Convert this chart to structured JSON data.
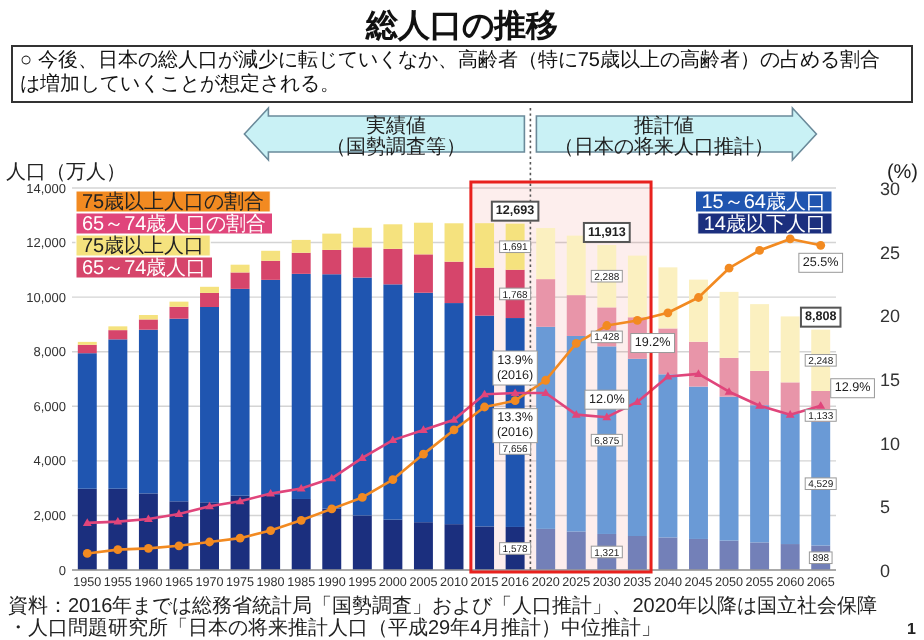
{
  "chart_data": {
    "type": "bar",
    "stacked": true,
    "title": "総人口の推移",
    "subtitle": "○ 今後、日本の総人口が減少に転じていくなか、高齢者（特に75歳以上の高齢者）の占める割合は増加していくことが想定される。",
    "ylabel": "人口（万人）",
    "y2label": "(%)",
    "annotations": [
      "実績値（国勢調査等）",
      "推計値（日本の将来人口推計）",
      "資料：2016年までは総務省統計局「国勢調査」および「人口推計」、2020年以降は国立社会保障・人口問題研究所「日本の将来推計人口（平成29年4月推計）中位推計」",
      "1"
    ],
    "categories": [
      "1950",
      "1955",
      "1960",
      "1965",
      "1970",
      "1975",
      "1980",
      "1985",
      "1990",
      "1995",
      "2000",
      "2005",
      "2010",
      "2015",
      "2016",
      "2020",
      "2025",
      "2030",
      "2035",
      "2040",
      "2045",
      "2050",
      "2055",
      "2060",
      "2065"
    ],
    "ylim": [
      0,
      14000
    ],
    "yticks": [
      0,
      {
        "value": 2000,
        "label": "2,000"
      },
      {
        "value": 4000,
        "label": "4,000"
      },
      {
        "value": 6000,
        "label": "6,000"
      },
      {
        "value": 8000,
        "label": "8,000"
      },
      {
        "value": 10000,
        "label": "10,000"
      },
      {
        "value": 12000,
        "label": "12,000"
      },
      {
        "value": 14000,
        "label": "14,000"
      }
    ],
    "y2lim": [
      0,
      30
    ],
    "y2ticks": [
      0,
      5,
      10,
      15,
      20,
      25,
      30
    ],
    "grid": "y",
    "series": [
      {
        "name": "14歳以下人口",
        "color": "#1b2f7e",
        "colors": [
          "#1b2f7e",
          "#1b2f7e",
          "#1b2f7e",
          "#1b2f7e",
          "#1b2f7e",
          "#1b2f7e",
          "#1b2f7e",
          "#1b2f7e",
          "#1b2f7e",
          "#1b2f7e",
          "#1b2f7e",
          "#1b2f7e",
          "#1b2f7e",
          "#1b2f7e",
          "#1b2f7e",
          "#7380b8",
          "#7380b8",
          "#7380b8",
          "#7380b8",
          "#7380b8",
          "#7380b8",
          "#7380b8",
          "#7380b8",
          "#7380b8",
          "#7380b8"
        ],
        "values": [
          2979,
          2980,
          2807,
          2517,
          2482,
          2722,
          2751,
          2603,
          2249,
          2001,
          1847,
          1752,
          1680,
          1595,
          1578,
          1507,
          1407,
          1321,
          1246,
          1194,
          1138,
          1077,
          1012,
          951,
          898
        ],
        "value_labels": [
          null,
          null,
          null,
          null,
          null,
          null,
          null,
          null,
          null,
          null,
          null,
          null,
          null,
          null,
          "1,578",
          null,
          null,
          "1,321",
          null,
          null,
          null,
          null,
          null,
          null,
          "898"
        ]
      },
      {
        "name": "15～64歳人口",
        "color": "#1f55b0",
        "colors": [
          "#1f55b0",
          "#1f55b0",
          "#1f55b0",
          "#1f55b0",
          "#1f55b0",
          "#1f55b0",
          "#1f55b0",
          "#1f55b0",
          "#1f55b0",
          "#1f55b0",
          "#1f55b0",
          "#1f55b0",
          "#1f55b0",
          "#1f55b0",
          "#1f55b0",
          "#6a9ad6",
          "#6a9ad6",
          "#6a9ad6",
          "#6a9ad6",
          "#6a9ad6",
          "#6a9ad6",
          "#6a9ad6",
          "#6a9ad6",
          "#6a9ad6",
          "#6a9ad6"
        ],
        "values": [
          4966,
          5473,
          6000,
          6693,
          7157,
          7581,
          7883,
          8251,
          8590,
          8716,
          8622,
          8409,
          8103,
          7728,
          7656,
          7406,
          7170,
          6875,
          6494,
          5978,
          5584,
          5275,
          5028,
          4793,
          4529
        ],
        "value_labels": [
          null,
          null,
          null,
          null,
          null,
          null,
          null,
          null,
          null,
          null,
          null,
          null,
          null,
          null,
          "7,656",
          null,
          null,
          "6,875",
          null,
          null,
          null,
          null,
          null,
          null,
          "4,529"
        ]
      },
      {
        "name": "65～74歳人口",
        "color": "#d6456b",
        "colors": [
          "#d6456b",
          "#d6456b",
          "#d6456b",
          "#d6456b",
          "#d6456b",
          "#d6456b",
          "#d6456b",
          "#d6456b",
          "#d6456b",
          "#d6456b",
          "#d6456b",
          "#d6456b",
          "#d6456b",
          "#d6456b",
          "#d6456b",
          "#e895a9",
          "#e895a9",
          "#e895a9",
          "#e895a9",
          "#e895a9",
          "#e895a9",
          "#e895a9",
          "#e895a9",
          "#e895a9",
          "#e895a9"
        ],
        "values": [
          309,
          338,
          375,
          437,
          516,
          602,
          699,
          773,
          892,
          1109,
          1301,
          1407,
          1517,
          1755,
          1768,
          1747,
          1497,
          1428,
          1522,
          1681,
          1643,
          1424,
          1258,
          1133,
          1133
        ],
        "value_labels": [
          null,
          null,
          null,
          null,
          null,
          null,
          null,
          null,
          null,
          null,
          null,
          null,
          null,
          null,
          "1,768",
          null,
          null,
          "1,428",
          null,
          null,
          null,
          null,
          null,
          null,
          "1,133"
        ]
      },
      {
        "name": "75歳以上人口",
        "color": "#f5e27e",
        "colors": [
          "#f5e27e",
          "#f5e27e",
          "#f5e27e",
          "#f5e27e",
          "#f5e27e",
          "#f5e27e",
          "#f5e27e",
          "#f5e27e",
          "#f5e27e",
          "#f5e27e",
          "#f5e27e",
          "#f5e27e",
          "#f5e27e",
          "#f5e27e",
          "#f5e27e",
          "#fbf0c0",
          "#fbf0c0",
          "#fbf0c0",
          "#fbf0c0",
          "#fbf0c0",
          "#fbf0c0",
          "#fbf0c0",
          "#fbf0c0",
          "#fbf0c0",
          "#fbf0c0"
        ],
        "values": [
          106,
          139,
          163,
          188,
          224,
          284,
          366,
          471,
          597,
          717,
          900,
          1160,
          1407,
          1632,
          1691,
          1872,
          2180,
          2288,
          2260,
          2239,
          2277,
          2417,
          2446,
          2417,
          2248
        ],
        "value_labels": [
          null,
          null,
          null,
          null,
          null,
          null,
          null,
          null,
          null,
          null,
          null,
          null,
          null,
          null,
          "1,691",
          null,
          null,
          "2,288",
          null,
          null,
          null,
          null,
          null,
          null,
          "2,248"
        ]
      },
      {
        "name": "75歳以上人口の割合",
        "type": "line",
        "axis": "y2",
        "marker": "circle",
        "color": "#f28a21",
        "values": [
          1.3,
          1.6,
          1.7,
          1.9,
          2.2,
          2.5,
          3.1,
          3.9,
          4.8,
          5.7,
          7.1,
          9.1,
          11.0,
          12.8,
          13.3,
          14.9,
          17.8,
          19.2,
          19.6,
          20.2,
          21.4,
          23.7,
          25.1,
          26.0,
          25.5
        ],
        "value_labels": [
          null,
          null,
          null,
          null,
          null,
          null,
          null,
          null,
          null,
          null,
          null,
          null,
          null,
          null,
          "13.3%\n(2016)",
          null,
          null,
          "19.2%",
          null,
          null,
          null,
          null,
          null,
          null,
          "25.5%"
        ]
      },
      {
        "name": "65～74歳人口の割合",
        "type": "line",
        "axis": "y2",
        "marker": "triangle",
        "color": "#e0457b",
        "values": [
          3.7,
          3.8,
          4.0,
          4.4,
          5.0,
          5.4,
          6.0,
          6.4,
          7.2,
          8.8,
          10.2,
          11.0,
          11.8,
          13.8,
          13.9,
          13.9,
          12.2,
          12.0,
          13.2,
          15.2,
          15.4,
          14.0,
          12.9,
          12.2,
          12.9
        ],
        "value_labels": [
          null,
          null,
          null,
          null,
          null,
          null,
          null,
          null,
          null,
          null,
          null,
          null,
          null,
          null,
          "13.9%\n(2016)",
          null,
          null,
          "12.0%",
          null,
          null,
          null,
          null,
          null,
          null,
          "12.9%"
        ]
      }
    ],
    "totals": [
      null,
      null,
      null,
      null,
      null,
      null,
      null,
      null,
      null,
      null,
      null,
      null,
      null,
      null,
      "12,693",
      null,
      null,
      "11,913",
      null,
      null,
      null,
      null,
      null,
      null,
      "8,808"
    ],
    "ref_lines": [
      {
        "axis": "x",
        "value": "2016",
        "color": "#555555",
        "line_style": "dotted"
      }
    ],
    "bands": [
      {
        "axis": "x",
        "from": "2015",
        "to": "2035",
        "color": "#e8211d"
      }
    ]
  }
}
